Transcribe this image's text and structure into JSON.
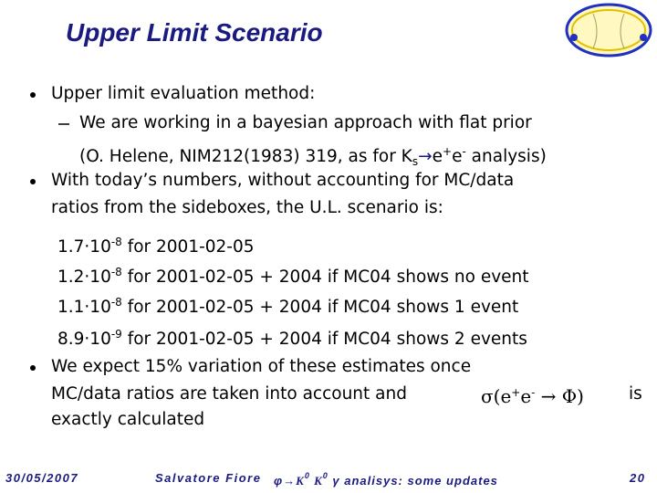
{
  "title": "Upper Limit Scenario",
  "bullets": [
    {
      "text": "Upper limit evaluation method:",
      "sub": {
        "line1": "We are working in a bayesian approach with flat prior",
        "line2": [
          "(O. Helene, NIM212(1983) 319, as for K",
          "s",
          "→",
          "e",
          "+",
          "e",
          "-",
          " analysis)"
        ]
      }
    },
    {
      "lines": [
        "With today’s numbers, without accounting for MC/data",
        "ratios from the sideboxes, the U.L. scenario is:"
      ],
      "scenarios": [
        {
          "mantissa": "1.7·10",
          "exponent": "-8",
          "text": " for 2001-02-05"
        },
        {
          "mantissa": "1.2·10",
          "exponent": "-8",
          "text": " for 2001-02-05 + 2004 if MC04 shows no event"
        },
        {
          "mantissa": "1.1·10",
          "exponent": "-8",
          "text": " for 2001-02-05 + 2004 if MC04 shows 1 event"
        },
        {
          "mantissa": "8.9·10",
          "exponent": "-9",
          "text": " for 2001-02-05 + 2004 if MC04 shows 2 events"
        }
      ]
    },
    {
      "line1": "We expect 15% variation of these estimates once",
      "line2": "MC/data ratios are taken into account and",
      "formula": [
        "σ(e",
        "+",
        "e",
        "-",
        " → Φ)"
      ],
      "line2_end": "is",
      "line3": "exactly calculated"
    }
  ],
  "footer": {
    "date": "30/05/2007",
    "author": "Salvatore Fiore",
    "topic": [
      "φ",
      "→",
      "K",
      "0",
      " K",
      "0",
      " γ analisys: some updates"
    ],
    "page": "20"
  }
}
